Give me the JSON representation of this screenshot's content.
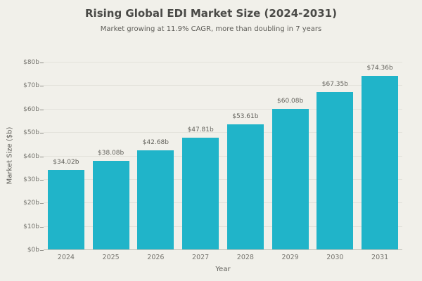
{
  "colors": {
    "background": "#f1f0ea",
    "bar": "#20b4c9",
    "title_text": "#4a4a47",
    "subtitle_text": "#5e5d58",
    "tick_text": "#75746e",
    "bar_label_text": "#63625c",
    "gridline": "#e3e2db",
    "axis_line": "#c2c1b9",
    "tick_mark": "#8f8e88"
  },
  "chart_data": {
    "type": "bar",
    "title": "Rising Global EDI Market Size (2024-2031)",
    "subtitle": "Market growing at 11.9% CAGR, more than doubling in 7 years",
    "categories": [
      "2024",
      "2025",
      "2026",
      "2027",
      "2028",
      "2029",
      "2030",
      "2031"
    ],
    "values": [
      34.02,
      38.08,
      42.68,
      47.81,
      53.61,
      60.08,
      67.35,
      74.36
    ],
    "bar_labels": [
      "$34.02b",
      "$38.08b",
      "$42.68b",
      "$47.81b",
      "$53.61b",
      "$60.08b",
      "$67.35b",
      "$74.36b"
    ],
    "xlabel": "Year",
    "ylabel": "Market Size ($b)",
    "ylim": [
      0,
      80
    ],
    "ytick_step": 10,
    "ytick_labels": [
      "$0b",
      "$10b",
      "$20b",
      "$30b",
      "$40b",
      "$50b",
      "$60b",
      "$70b",
      "$80b"
    ],
    "grid": true,
    "legend": "none"
  }
}
